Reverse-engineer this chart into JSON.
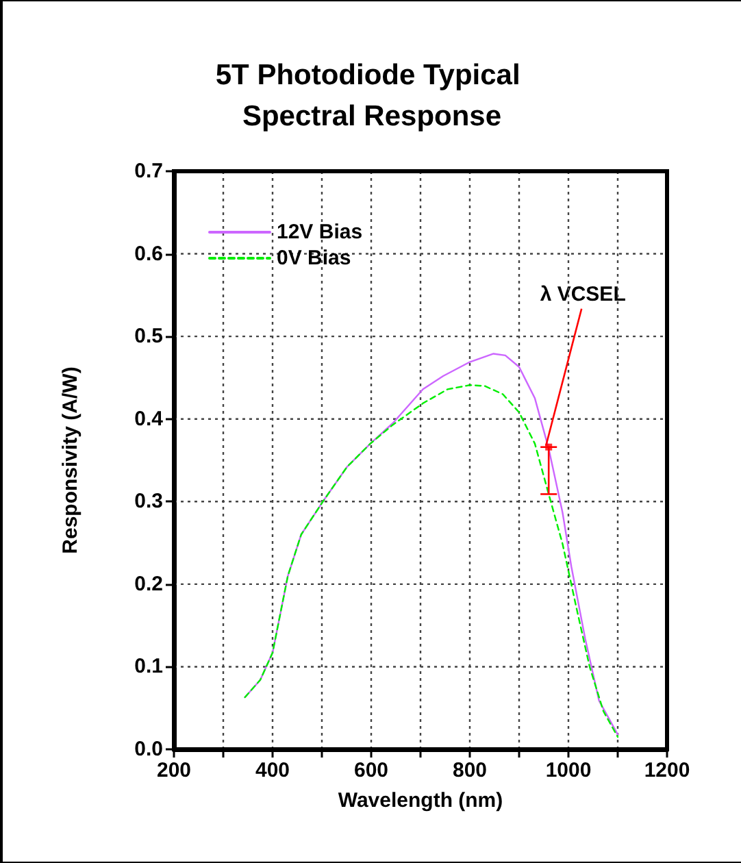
{
  "chart_data": {
    "type": "line",
    "title": "5T Photodiode Typical Spectral Response",
    "xlabel": "Wavelength (nm)",
    "ylabel": "Responsivity (A/W)",
    "xlim": [
      200,
      1200
    ],
    "ylim": [
      0,
      0.7
    ],
    "xticks": [
      200,
      {
        "value": 300,
        "label": null
      },
      400,
      {
        "value": 500,
        "label": null
      },
      600,
      {
        "value": 700,
        "label": null
      },
      800,
      {
        "value": 900,
        "label": null
      },
      1000,
      {
        "value": 1100,
        "label": null
      },
      1200
    ],
    "yticks": [
      {
        "value": 0,
        "label": "0.0"
      },
      0.1,
      0.2,
      0.3,
      0.4,
      0.5,
      0.6,
      0.7
    ],
    "grid": true,
    "legend": "top left",
    "marker": "none",
    "series": [
      {
        "name": "12V Bias",
        "color": "#cc66ff",
        "line_style": "solid",
        "x": [
          344,
          375,
          400,
          431,
          458,
          502,
          551,
          598,
          644,
          705,
          746,
          800,
          848,
          872,
          900,
          932,
          960,
          988,
          1006,
          1034,
          1062,
          1100
        ],
        "values": [
          0.063,
          0.084,
          0.117,
          0.21,
          0.26,
          0.3,
          0.342,
          0.37,
          0.395,
          0.436,
          0.452,
          0.469,
          0.479,
          0.477,
          0.463,
          0.425,
          0.364,
          0.287,
          0.221,
          0.134,
          0.059,
          0.018
        ]
      },
      {
        "name": "0V Bias",
        "color": "#00ee00",
        "line_style": "dashed",
        "x": [
          344,
          375,
          400,
          431,
          458,
          502,
          551,
          598,
          644,
          705,
          755,
          800,
          830,
          867,
          900,
          932,
          960,
          988,
          1016,
          1043,
          1071,
          1100
        ],
        "values": [
          0.063,
          0.084,
          0.117,
          0.21,
          0.26,
          0.3,
          0.342,
          0.37,
          0.393,
          0.419,
          0.436,
          0.441,
          0.44,
          0.43,
          0.408,
          0.37,
          0.309,
          0.249,
          0.172,
          0.1,
          0.046,
          0.015
        ]
      },
      {
        "type": "scatter",
        "color": "#ff0000",
        "marker": "square",
        "x": [
          960
        ],
        "values": [
          0.366
        ],
        "errors": [
          [
            0.309,
            0.366
          ]
        ]
      }
    ],
    "annotations": [
      {
        "text": "λ VCSEL",
        "x": 960,
        "y": 0.366
      }
    ]
  }
}
